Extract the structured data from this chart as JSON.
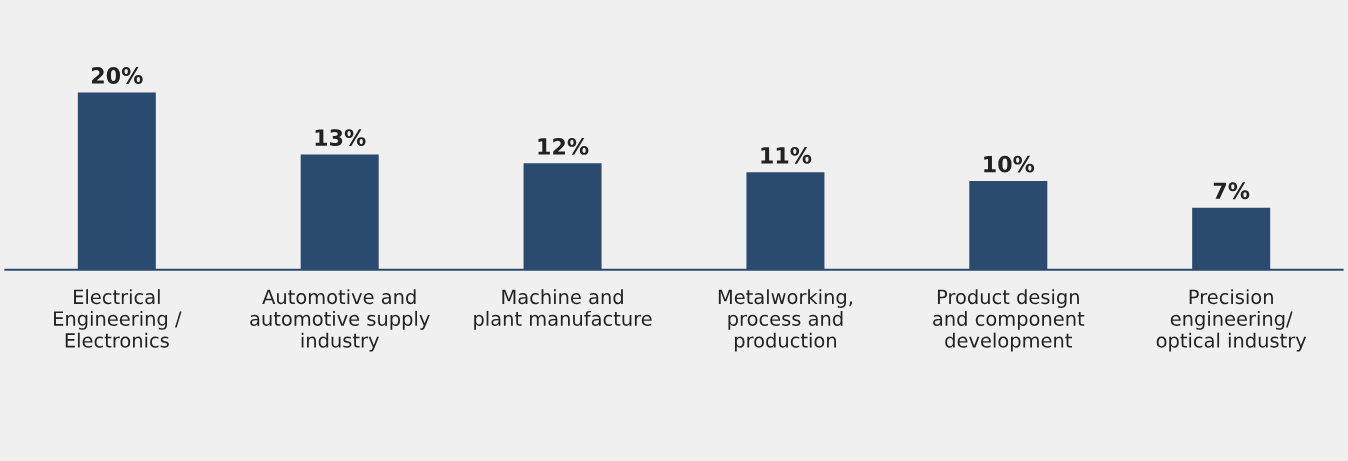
{
  "chart_data": {
    "type": "bar",
    "categories": [
      "Electrical\nEngineering /\nElectronics",
      "Automotive and\nautomotive supply\nindustry",
      "Machine and\nplant manufacture",
      "Metalworking,\nprocess and\nproduction",
      "Product design\nand component\ndevelopment",
      "Precision\nengineering/\noptical industry"
    ],
    "values": [
      20,
      13,
      12,
      11,
      10,
      7
    ],
    "value_labels": [
      "20%",
      "13%",
      "12%",
      "11%",
      "10%",
      "7%"
    ],
    "color": "#2b4a6f",
    "grid": false,
    "legend": false
  }
}
